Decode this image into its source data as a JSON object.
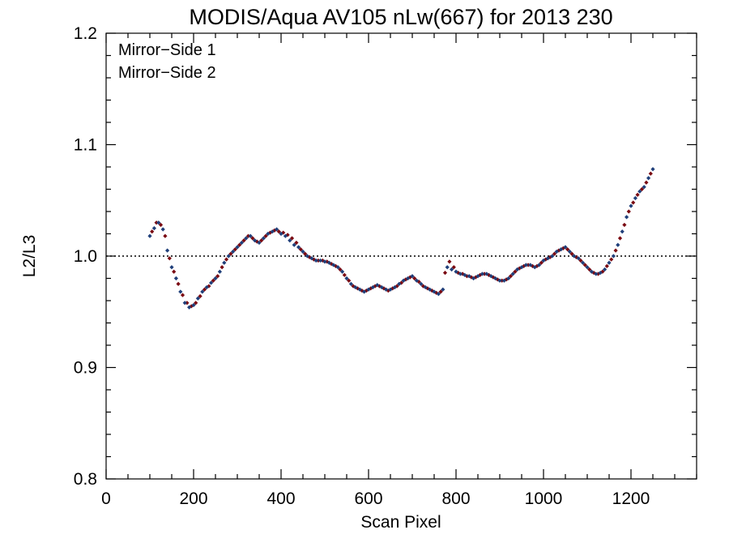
{
  "chart_data": {
    "type": "scatter",
    "title": "MODIS/Aqua AV105 nLw(667) for 2013 230",
    "xlabel": "Scan Pixel",
    "ylabel": "L2/L3",
    "xlim": [
      0,
      1350
    ],
    "ylim": [
      0.8,
      1.2
    ],
    "x_ticks": [
      "0",
      "200",
      "400",
      "600",
      "800",
      "1000",
      "1200"
    ],
    "x_tick_values": [
      0,
      200,
      400,
      600,
      800,
      1000,
      1200
    ],
    "y_ticks": [
      "0.8",
      "0.9",
      "1.0",
      "1.1",
      "1.2"
    ],
    "y_tick_values": [
      0.8,
      0.9,
      1.0,
      1.1,
      1.2
    ],
    "reference_line": {
      "y": 1.0,
      "style": "dotted"
    },
    "legend_position": "top-left",
    "grid": false,
    "series": [
      {
        "name": "Mirror−Side 1",
        "color": "#1f3f7a",
        "x": [
          100,
          110,
          120,
          130,
          140,
          150,
          160,
          170,
          180,
          190,
          200,
          210,
          220,
          230,
          240,
          250,
          260,
          270,
          280,
          290,
          300,
          310,
          320,
          330,
          340,
          350,
          360,
          370,
          380,
          390,
          400,
          410,
          420,
          430,
          440,
          450,
          460,
          470,
          480,
          490,
          500,
          510,
          520,
          530,
          540,
          550,
          560,
          570,
          580,
          590,
          600,
          610,
          620,
          630,
          640,
          650,
          660,
          670,
          680,
          690,
          700,
          710,
          720,
          730,
          740,
          750,
          760,
          770,
          780,
          790,
          800,
          810,
          820,
          830,
          840,
          850,
          860,
          870,
          880,
          890,
          900,
          910,
          920,
          930,
          940,
          950,
          960,
          970,
          980,
          990,
          1000,
          1010,
          1020,
          1030,
          1040,
          1050,
          1060,
          1070,
          1080,
          1090,
          1100,
          1110,
          1120,
          1130,
          1140,
          1150,
          1160,
          1170,
          1180,
          1190,
          1200,
          1210,
          1220,
          1230,
          1240,
          1250
        ],
        "y": [
          1.018,
          1.025,
          1.03,
          1.024,
          1.005,
          0.99,
          0.98,
          0.968,
          0.958,
          0.954,
          0.956,
          0.962,
          0.968,
          0.972,
          0.976,
          0.98,
          0.986,
          0.994,
          1.0,
          1.004,
          1.008,
          1.012,
          1.016,
          1.018,
          1.014,
          1.012,
          1.016,
          1.02,
          1.022,
          1.024,
          1.02,
          1.018,
          1.014,
          1.01,
          1.008,
          1.004,
          1.0,
          0.998,
          0.996,
          0.996,
          0.995,
          0.994,
          0.992,
          0.99,
          0.986,
          0.98,
          0.975,
          0.972,
          0.97,
          0.968,
          0.97,
          0.972,
          0.974,
          0.972,
          0.97,
          0.97,
          0.972,
          0.975,
          0.978,
          0.98,
          0.982,
          0.978,
          0.975,
          0.972,
          0.97,
          0.968,
          0.966,
          0.97,
          0.99,
          0.988,
          0.986,
          0.984,
          0.983,
          0.982,
          0.98,
          0.982,
          0.984,
          0.984,
          0.982,
          0.98,
          0.978,
          0.978,
          0.98,
          0.984,
          0.988,
          0.99,
          0.992,
          0.992,
          0.99,
          0.992,
          0.996,
          0.998,
          1.0,
          1.004,
          1.006,
          1.008,
          1.004,
          1.0,
          0.998,
          0.994,
          0.99,
          0.986,
          0.984,
          0.985,
          0.988,
          0.994,
          1.0,
          1.01,
          1.022,
          1.035,
          1.045,
          1.052,
          1.058,
          1.062,
          1.07,
          1.078
        ]
      },
      {
        "name": "Mirror−Side 2",
        "color": "#7a0a12",
        "x": [
          105,
          115,
          125,
          135,
          145,
          155,
          165,
          175,
          185,
          195,
          205,
          215,
          225,
          235,
          245,
          255,
          265,
          275,
          285,
          295,
          305,
          315,
          325,
          335,
          345,
          355,
          365,
          375,
          385,
          395,
          405,
          415,
          425,
          435,
          445,
          455,
          465,
          475,
          485,
          495,
          505,
          515,
          525,
          535,
          545,
          555,
          565,
          575,
          585,
          595,
          605,
          615,
          625,
          635,
          645,
          655,
          665,
          675,
          685,
          695,
          705,
          715,
          725,
          735,
          745,
          755,
          765,
          775,
          785,
          795,
          805,
          815,
          825,
          835,
          845,
          855,
          865,
          875,
          885,
          895,
          905,
          915,
          925,
          935,
          945,
          955,
          965,
          975,
          985,
          995,
          1005,
          1015,
          1025,
          1035,
          1045,
          1055,
          1065,
          1075,
          1085,
          1095,
          1105,
          1115,
          1125,
          1135,
          1145,
          1155,
          1165,
          1175,
          1185,
          1195,
          1205,
          1215,
          1225,
          1235,
          1245
        ],
        "y": [
          1.022,
          1.03,
          1.028,
          1.018,
          0.998,
          0.986,
          0.975,
          0.965,
          0.958,
          0.955,
          0.958,
          0.964,
          0.97,
          0.973,
          0.978,
          0.982,
          0.99,
          0.997,
          1.002,
          1.006,
          1.01,
          1.014,
          1.018,
          1.016,
          1.013,
          1.014,
          1.018,
          1.021,
          1.023,
          1.022,
          1.021,
          1.019,
          1.016,
          1.012,
          1.006,
          1.002,
          0.999,
          0.997,
          0.996,
          0.996,
          0.995,
          0.993,
          0.991,
          0.988,
          0.983,
          0.978,
          0.973,
          0.971,
          0.969,
          0.969,
          0.971,
          0.973,
          0.973,
          0.971,
          0.969,
          0.971,
          0.973,
          0.976,
          0.979,
          0.981,
          0.98,
          0.977,
          0.973,
          0.971,
          0.969,
          0.967,
          0.968,
          0.985,
          0.995,
          0.99,
          0.985,
          0.984,
          0.982,
          0.981,
          0.981,
          0.983,
          0.984,
          0.983,
          0.981,
          0.979,
          0.978,
          0.979,
          0.982,
          0.986,
          0.989,
          0.991,
          0.992,
          0.991,
          0.991,
          0.994,
          0.997,
          0.999,
          1.002,
          1.005,
          1.007,
          1.006,
          1.002,
          0.999,
          0.996,
          0.992,
          0.988,
          0.985,
          0.984,
          0.986,
          0.991,
          0.997,
          1.005,
          1.016,
          1.028,
          1.04,
          1.048,
          1.055,
          1.06,
          1.066,
          1.074
        ]
      }
    ]
  }
}
